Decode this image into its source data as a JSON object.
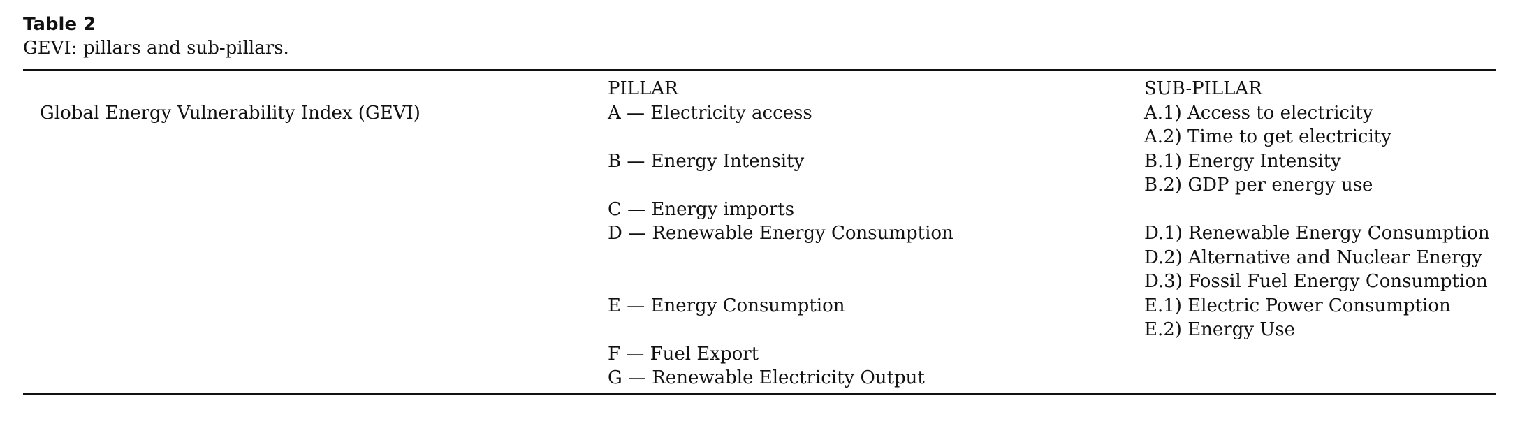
{
  "caption": {
    "label": "Table 2",
    "text": "GEVI: pillars and sub-pillars."
  },
  "table": {
    "headers": {
      "index": "",
      "pillar": "PILLAR",
      "sub_pillar": "SUB-PILLAR"
    },
    "rows": [
      {
        "index": "Global Energy Vulnerability Index (GEVI)",
        "pillar": "A — Electricity access",
        "sub_pillar": "A.1) Access to electricity"
      },
      {
        "index": "",
        "pillar": "",
        "sub_pillar": "A.2) Time to get electricity"
      },
      {
        "index": "",
        "pillar": "B — Energy Intensity",
        "sub_pillar": "B.1) Energy Intensity"
      },
      {
        "index": "",
        "pillar": "",
        "sub_pillar": "B.2) GDP per energy use"
      },
      {
        "index": "",
        "pillar": "C — Energy imports",
        "sub_pillar": ""
      },
      {
        "index": "",
        "pillar": "D — Renewable Energy Consumption",
        "sub_pillar": "D.1) Renewable Energy Consumption"
      },
      {
        "index": "",
        "pillar": "",
        "sub_pillar": "D.2) Alternative and Nuclear Energy"
      },
      {
        "index": "",
        "pillar": "",
        "sub_pillar": "D.3) Fossil Fuel Energy Consumption"
      },
      {
        "index": "",
        "pillar": "E — Energy Consumption",
        "sub_pillar": "E.1) Electric Power Consumption"
      },
      {
        "index": "",
        "pillar": "",
        "sub_pillar": "E.2) Energy Use"
      },
      {
        "index": "",
        "pillar": "F — Fuel Export",
        "sub_pillar": ""
      },
      {
        "index": "",
        "pillar": "G — Renewable Electricity Output",
        "sub_pillar": ""
      }
    ]
  }
}
